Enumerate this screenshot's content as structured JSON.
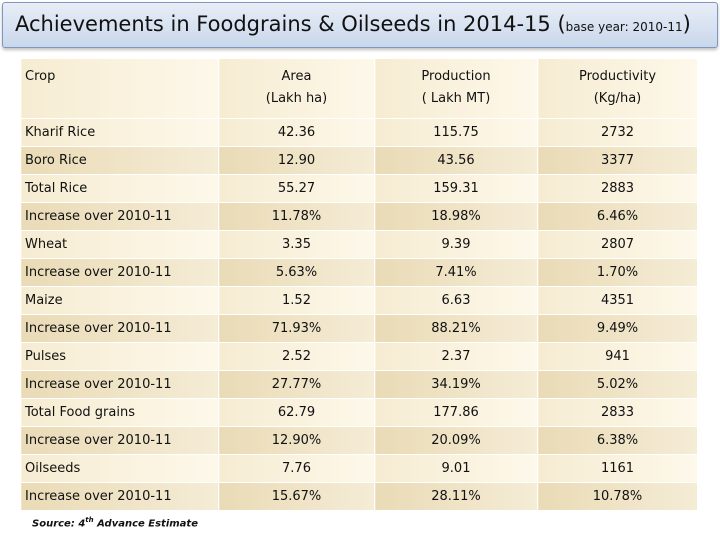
{
  "title": {
    "main": "Achievements in Foodgrains & Oilseeds in 2014-15 (",
    "small": "base year: 2010-11",
    "close": ")"
  },
  "headers": [
    {
      "line1": "Crop",
      "line2": ""
    },
    {
      "line1": "Area",
      "line2": "(Lakh ha)"
    },
    {
      "line1": "Production",
      "line2": "( Lakh MT)"
    },
    {
      "line1": "Productivity",
      "line2": "(Kg/ha)"
    }
  ],
  "rows": [
    {
      "crop": "Kharif Rice",
      "area": "42.36",
      "production": "115.75",
      "productivity": "2732"
    },
    {
      "crop": "Boro Rice",
      "area": "12.90",
      "production": "43.56",
      "productivity": "3377"
    },
    {
      "crop": "Total Rice",
      "area": "55.27",
      "production": "159.31",
      "productivity": "2883"
    },
    {
      "crop": "Increase over 2010-11",
      "area": "11.78%",
      "production": "18.98%",
      "productivity": "6.46%"
    },
    {
      "crop": "Wheat",
      "area": "3.35",
      "production": "9.39",
      "productivity": "2807"
    },
    {
      "crop": "Increase over 2010-11",
      "area": "5.63%",
      "production": "7.41%",
      "productivity": "1.70%"
    },
    {
      "crop": "Maize",
      "area": "1.52",
      "production": "6.63",
      "productivity": "4351"
    },
    {
      "crop": "Increase over 2010-11",
      "area": "71.93%",
      "production": "88.21%",
      "productivity": "9.49%"
    },
    {
      "crop": "Pulses",
      "area": "2.52",
      "production": "2.37",
      "productivity": "941"
    },
    {
      "crop": "Increase over 2010-11",
      "area": "27.77%",
      "production": "34.19%",
      "productivity": "5.02%"
    },
    {
      "crop": "Total Food grains",
      "area": "62.79",
      "production": "177.86",
      "productivity": "2833"
    },
    {
      "crop": "Increase over 2010-11",
      "area": "12.90%",
      "production": "20.09%",
      "productivity": "6.38%"
    },
    {
      "crop": "Oilseeds",
      "area": "7.76",
      "production": "9.01",
      "productivity": "1161"
    },
    {
      "crop": "Increase over 2010-11",
      "area": "15.67%",
      "production": "28.11%",
      "productivity": "10.78%"
    }
  ],
  "source": {
    "prefix": "Source: 4",
    "sup": "th",
    "suffix": " Advance Estimate"
  }
}
